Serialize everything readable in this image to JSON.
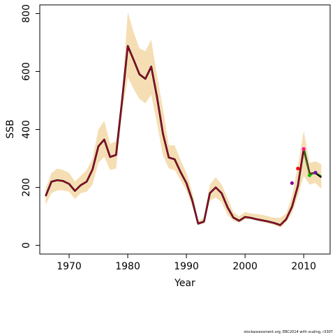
{
  "chart_data": {
    "type": "line",
    "xlabel": "Year",
    "ylabel": "SSB",
    "xlim": [
      1965,
      2014.5
    ],
    "ylim": [
      -30,
      830
    ],
    "x_ticks": [
      1970,
      1980,
      1990,
      2000,
      2010
    ],
    "y_ticks": [
      0,
      200,
      400,
      600,
      800
    ],
    "grid": false,
    "colors": {
      "band": "#f5deb3",
      "main_line": "#000000",
      "overlay_line": "#c8003a",
      "retro_line": "#2e8b00"
    },
    "confidence_band": {
      "x": [
        1966,
        1967,
        1968,
        1969,
        1970,
        1971,
        1972,
        1973,
        1974,
        1975,
        1976,
        1977,
        1978,
        1979,
        1980,
        1981,
        1982,
        1983,
        1984,
        1985,
        1986,
        1987,
        1988,
        1989,
        1990,
        1991,
        1992,
        1993,
        1994,
        1995,
        1996,
        1997,
        1998,
        1999,
        2000,
        2001,
        2002,
        2003,
        2004,
        2005,
        2006,
        2007,
        2008,
        2009,
        2010,
        2011,
        2012,
        2013
      ],
      "lower": [
        140,
        180,
        190,
        190,
        185,
        160,
        180,
        185,
        210,
        285,
        305,
        260,
        265,
        450,
        580,
        540,
        505,
        490,
        520,
        420,
        310,
        265,
        260,
        225,
        190,
        135,
        70,
        75,
        155,
        165,
        150,
        105,
        85,
        78,
        90,
        90,
        85,
        80,
        75,
        70,
        60,
        80,
        110,
        170,
        240,
        210,
        215,
        195
      ],
      "upper": [
        195,
        250,
        265,
        260,
        250,
        220,
        240,
        260,
        300,
        400,
        430,
        350,
        360,
        520,
        805,
        735,
        680,
        670,
        710,
        585,
        470,
        345,
        345,
        295,
        250,
        185,
        85,
        95,
        210,
        235,
        210,
        165,
        115,
        100,
        115,
        110,
        108,
        105,
        100,
        95,
        95,
        110,
        170,
        275,
        395,
        285,
        290,
        280
      ]
    },
    "series": [
      {
        "x": [
          1966,
          1967,
          1968,
          1969,
          1970,
          1971,
          1972,
          1973,
          1974,
          1975,
          1976,
          1977,
          1978,
          1979,
          1980,
          1981,
          1982,
          1983,
          1984,
          1985,
          1986,
          1987,
          1988,
          1989,
          1990,
          1991,
          1992,
          1993,
          1994,
          1995,
          1996,
          1997,
          1998,
          1999,
          2000,
          2001,
          2002,
          2003,
          2004,
          2005,
          2006,
          2007,
          2008,
          2009,
          2010,
          2011,
          2012,
          2013
        ],
        "values": [
          170,
          220,
          225,
          222,
          212,
          188,
          208,
          220,
          262,
          342,
          365,
          305,
          312,
          495,
          688,
          640,
          590,
          575,
          617,
          510,
          385,
          303,
          297,
          253,
          215,
          155,
          75,
          82,
          180,
          200,
          180,
          132,
          96,
          85,
          98,
          95,
          90,
          86,
          82,
          77,
          70,
          90,
          133,
          205,
          333,
          247,
          250,
          235
        ]
      },
      {
        "x": [
          1966,
          1967,
          1968,
          1969,
          1970,
          1971,
          1972,
          1973,
          1974,
          1975,
          1976,
          1977,
          1978,
          1979,
          1980,
          1981,
          1982,
          1983,
          1984,
          1985,
          1986,
          1987,
          1988,
          1989,
          1990,
          1991,
          1992,
          1993,
          1994,
          1995,
          1996,
          1997,
          1998,
          1999,
          2000,
          2001,
          2002,
          2003,
          2004,
          2005,
          2006,
          2007,
          2008,
          2009,
          2010,
          2011,
          2012
        ],
        "values": [
          170,
          220,
          225,
          222,
          212,
          188,
          208,
          220,
          262,
          342,
          365,
          305,
          312,
          495,
          688,
          640,
          590,
          575,
          617,
          510,
          385,
          303,
          297,
          253,
          215,
          155,
          75,
          82,
          180,
          200,
          180,
          132,
          96,
          85,
          98,
          95,
          90,
          86,
          82,
          77,
          70,
          90,
          133,
          205,
          333,
          247,
          250
        ]
      },
      {
        "x": [
          2010,
          2011,
          2012,
          2013
        ],
        "values": [
          333,
          240,
          252,
          240
        ]
      }
    ],
    "points": [
      {
        "x": 2008,
        "y": 215,
        "color": "#8b008b"
      },
      {
        "x": 2009,
        "y": 265,
        "color": "#ff0000"
      },
      {
        "x": 2010,
        "y": 333,
        "color": "#ff1493"
      },
      {
        "x": 2011,
        "y": 242,
        "color": "#00c000"
      },
      {
        "x": 2012,
        "y": 251,
        "color": "#6a0dad"
      }
    ]
  },
  "footnote": "stockassessment.org, EBC2014 with scaling, r3307"
}
